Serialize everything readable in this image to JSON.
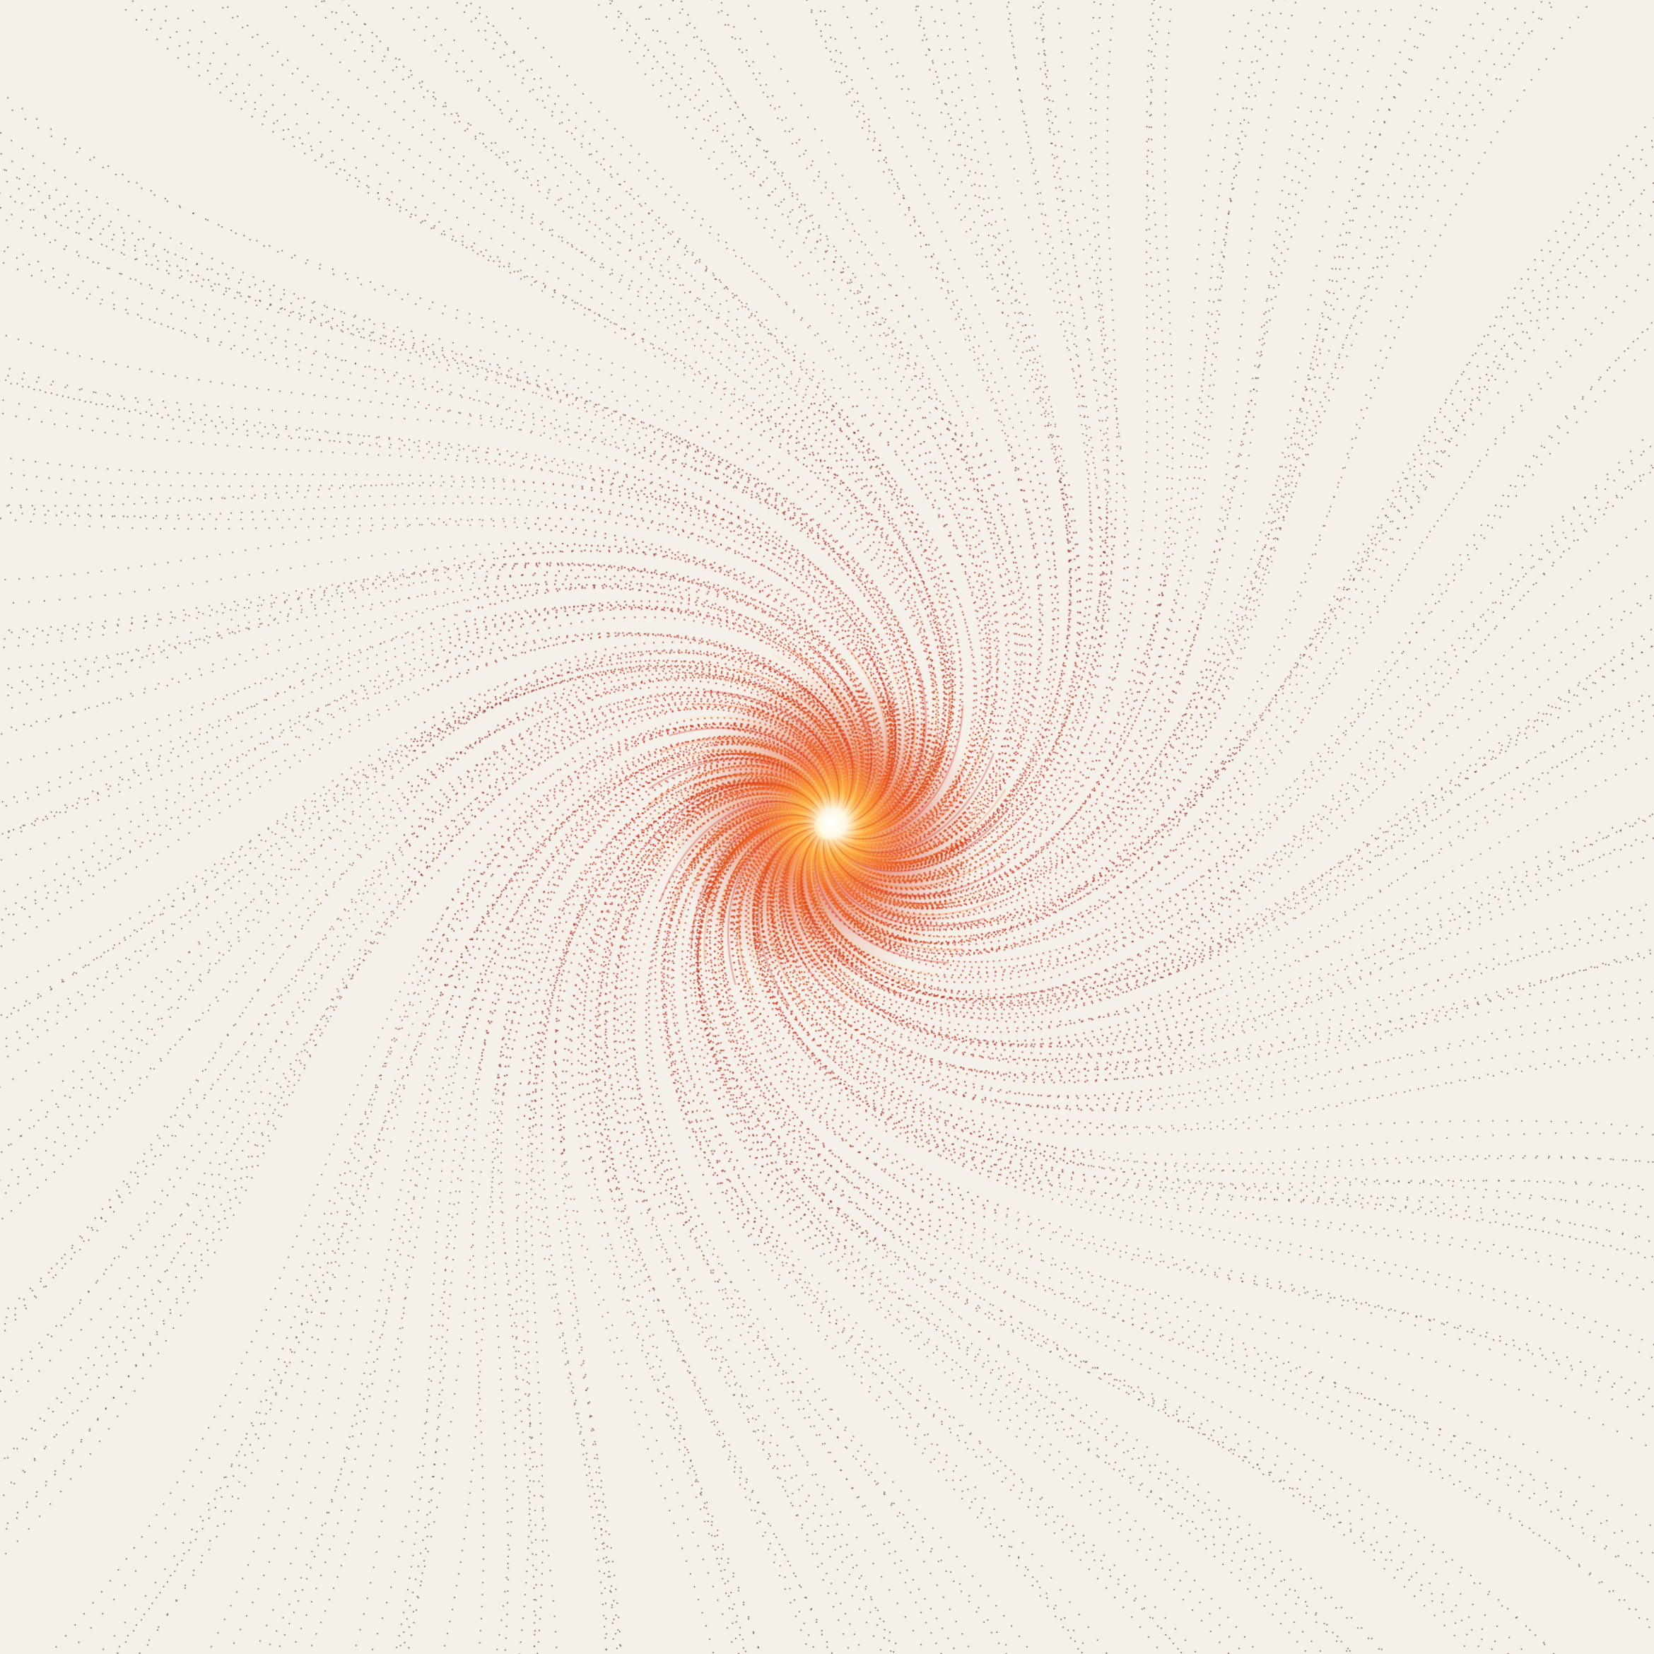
{
  "artwork": {
    "subject": "spiral-vortex",
    "colors": {
      "background": "#f5f1ea",
      "dot_dark": "#3a0c08",
      "dot_mid": "#8a1a10",
      "core_red": "#d42a12",
      "core_orange": "#f06a18",
      "core_glow": "#ffd070",
      "core_white": "#ffffff"
    },
    "arms": 48,
    "rotation": "counterclockwise"
  }
}
